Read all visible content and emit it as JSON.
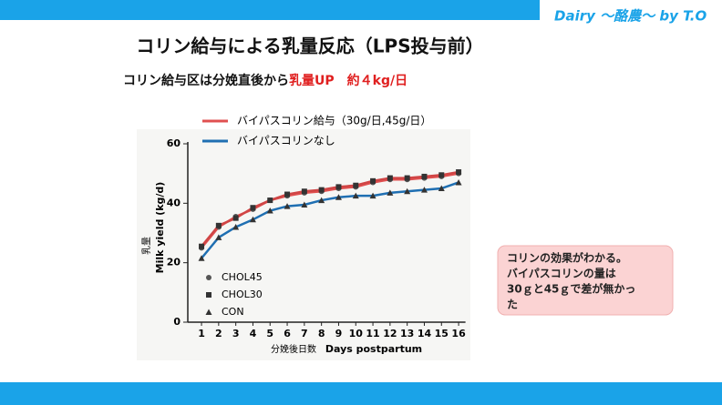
{
  "header": "Dairy ～酪農～ by T.O",
  "chart_data": {
    "type": "line",
    "title": "コリン給与による乳量反応（LPS投与前）",
    "subtitle": {
      "text": "コリン給与区は分娩直後から",
      "highlight": "乳量UP　約４kg/日",
      "highlight_color": "#e02020"
    },
    "overlay_legend": [
      {
        "label": "バイパスコリン給与（30g/日,45g/日）",
        "color": "#e05050"
      },
      {
        "label": "バイパスコリンなし",
        "color": "#1f6fb2"
      }
    ],
    "y_label": "Milk yield (kg/d)",
    "y_label_ja": "乳量",
    "x_label": "Days postpartum",
    "x_label_ja": "分娩後日数",
    "x": [
      1,
      2,
      3,
      4,
      5,
      6,
      7,
      8,
      9,
      10,
      11,
      12,
      13,
      14,
      15,
      16
    ],
    "xlim": [
      0.2,
      16.4
    ],
    "xticks": [
      1,
      2,
      3,
      4,
      5,
      6,
      7,
      8,
      9,
      10,
      11,
      12,
      13,
      14,
      15,
      16
    ],
    "ylim": [
      0,
      60
    ],
    "yticks": [
      0,
      20,
      40,
      60
    ],
    "series": [
      {
        "name": "CHOL45",
        "color": "#e05050",
        "marker": "circle",
        "values": [
          25,
          32,
          35.5,
          38,
          41,
          42.5,
          43.5,
          44,
          45,
          45.5,
          47,
          48,
          48,
          48.5,
          49,
          50
        ]
      },
      {
        "name": "CHOL30",
        "color": "#d04545",
        "marker": "square",
        "values": [
          25.5,
          32.5,
          35,
          38.5,
          41,
          43,
          44,
          44.5,
          45.5,
          46,
          47.5,
          48.5,
          48.5,
          49,
          49.5,
          50.5
        ]
      },
      {
        "name": "CON",
        "color": "#1f6fb2",
        "marker": "triangle",
        "values": [
          21.5,
          28.5,
          32,
          34.5,
          37.5,
          39,
          39.5,
          41,
          42,
          42.5,
          42.5,
          43.5,
          44,
          44.5,
          45,
          47
        ]
      }
    ],
    "note": [
      "コリンの効果がわかる。",
      "バイパスコリンの量は",
      "30ｇと45ｇで差が無かっ",
      "た"
    ]
  }
}
